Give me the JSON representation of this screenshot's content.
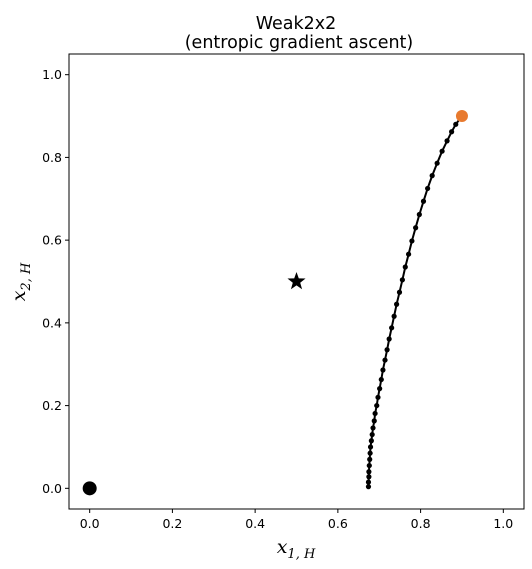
{
  "chart_data": {
    "type": "scatter",
    "title": "Weak2x2",
    "subtitle": "(entropic gradient ascent)",
    "xlabel_base": "x",
    "xlabel_sub": "1, H",
    "ylabel_base": "x",
    "ylabel_sub": "2, H",
    "xlim": [
      -0.05,
      1.05
    ],
    "ylim": [
      -0.05,
      1.05
    ],
    "xticks": [
      "0.0",
      "0.2",
      "0.4",
      "0.6",
      "0.8",
      "1.0"
    ],
    "yticks": [
      "0.0",
      "0.2",
      "0.4",
      "0.6",
      "0.8",
      "1.0"
    ],
    "grid": false,
    "trajectory": {
      "color": "#000000",
      "x": [
        0.9,
        0.885,
        0.875,
        0.864,
        0.852,
        0.84,
        0.828,
        0.817,
        0.807,
        0.797,
        0.788,
        0.779,
        0.771,
        0.763,
        0.756,
        0.749,
        0.742,
        0.736,
        0.73,
        0.724,
        0.719,
        0.714,
        0.709,
        0.705,
        0.701,
        0.697,
        0.694,
        0.69,
        0.688,
        0.685,
        0.683,
        0.681,
        0.679,
        0.678,
        0.677,
        0.676,
        0.675,
        0.675,
        0.674,
        0.674
      ],
      "y": [
        0.9,
        0.88,
        0.862,
        0.84,
        0.815,
        0.786,
        0.756,
        0.725,
        0.694,
        0.662,
        0.63,
        0.598,
        0.566,
        0.535,
        0.504,
        0.474,
        0.445,
        0.416,
        0.388,
        0.361,
        0.335,
        0.31,
        0.286,
        0.263,
        0.241,
        0.22,
        0.2,
        0.181,
        0.163,
        0.146,
        0.13,
        0.115,
        0.1,
        0.085,
        0.07,
        0.055,
        0.04,
        0.028,
        0.015,
        0.004
      ]
    },
    "start_point": {
      "x": 0.9,
      "y": 0.9,
      "color": "#e87a2f"
    },
    "equilibrium_star": {
      "x": 0.5,
      "y": 0.5,
      "color": "#000000"
    },
    "origin_point": {
      "x": 0.0,
      "y": 0.0,
      "color": "#000000"
    }
  }
}
